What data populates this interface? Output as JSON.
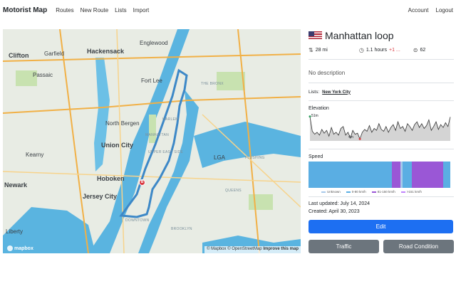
{
  "nav": {
    "brand": "Motorist Map",
    "links": [
      "Routes",
      "New Route",
      "Lists",
      "Import"
    ],
    "right_links": [
      "Account",
      "Logout"
    ]
  },
  "map": {
    "labels": {
      "hackensack": "Hackensack",
      "englewood": "Englewood",
      "garfield": "Garfield",
      "clifton": "Clifton",
      "passaic": "Passaic",
      "fort_lee": "Fort Lee",
      "the_bronx": "THE BRONX",
      "north_bergen": "North Bergen",
      "harlem": "HARLEM",
      "union_city": "Union City",
      "manhattan": "MANHATTAN",
      "upper_east_side": "UPPER EAST SIDE",
      "flushing": "FLUSHING",
      "lga": "LGA",
      "kearny": "Kearny",
      "hoboken": "Hoboken",
      "newark": "Newark",
      "jersey_city": "Jersey City",
      "queens": "QUEENS",
      "brooklyn": "BROOKLYN",
      "downtown": "DOWNTOWN",
      "liberty": "Liberty"
    },
    "marker_label": "B",
    "logo": "mapbox",
    "attribution": {
      "mapbox": "© Mapbox",
      "osm": "© OpenStreetMap",
      "improve": "Improve this map"
    }
  },
  "route": {
    "title": "Manhattan loop",
    "distance": "28 mi",
    "duration": "1.1 hours",
    "duration_delta": "+1 ...",
    "score": "62",
    "description": "No description",
    "lists_label": "Lists:",
    "list_tag": "New York City",
    "elevation_label": "Elevation",
    "elevation_tick_start": "51m",
    "elevation_tick_low": "4m",
    "speed_label": "Speed",
    "speed_legend": [
      "Unknown",
      "0-80 km/h",
      "81-150 km/h",
      ">151 km/h"
    ],
    "last_updated": "Last updated: July 14, 2024",
    "created": "Created: April 30, 2023"
  },
  "buttons": {
    "edit": "Edit",
    "traffic": "Traffic",
    "road_condition": "Road Condition"
  },
  "elevation": [
    51,
    20,
    14,
    18,
    12,
    24,
    16,
    22,
    10,
    28,
    14,
    18,
    12,
    26,
    30,
    12,
    18,
    6,
    22,
    14,
    16,
    4,
    18,
    24,
    20,
    32,
    18,
    26,
    22,
    36,
    24,
    20,
    30,
    18,
    28,
    34,
    22,
    40,
    26,
    30,
    20,
    36,
    30,
    22,
    34,
    40,
    28,
    36,
    26,
    32,
    44,
    22,
    30,
    40,
    24,
    34,
    28,
    38,
    30,
    50
  ],
  "speed_segments": [
    {
      "cls": "moderate",
      "frac": 0.59
    },
    {
      "cls": "fast",
      "frac": 0.06
    },
    {
      "cls": "unknown",
      "frac": 0.015
    },
    {
      "cls": "moderate",
      "frac": 0.065
    },
    {
      "cls": "fast",
      "frac": 0.22
    },
    {
      "cls": "moderate",
      "frac": 0.05
    }
  ],
  "colors": {
    "primary": "#1d6ff2",
    "secondary": "#6c757d",
    "route": "#3d88c7",
    "unknown": "#a7c9ea",
    "moderate": "#5aaee3",
    "fast": "#9a57d6",
    "very_fast": "#c084fc"
  }
}
